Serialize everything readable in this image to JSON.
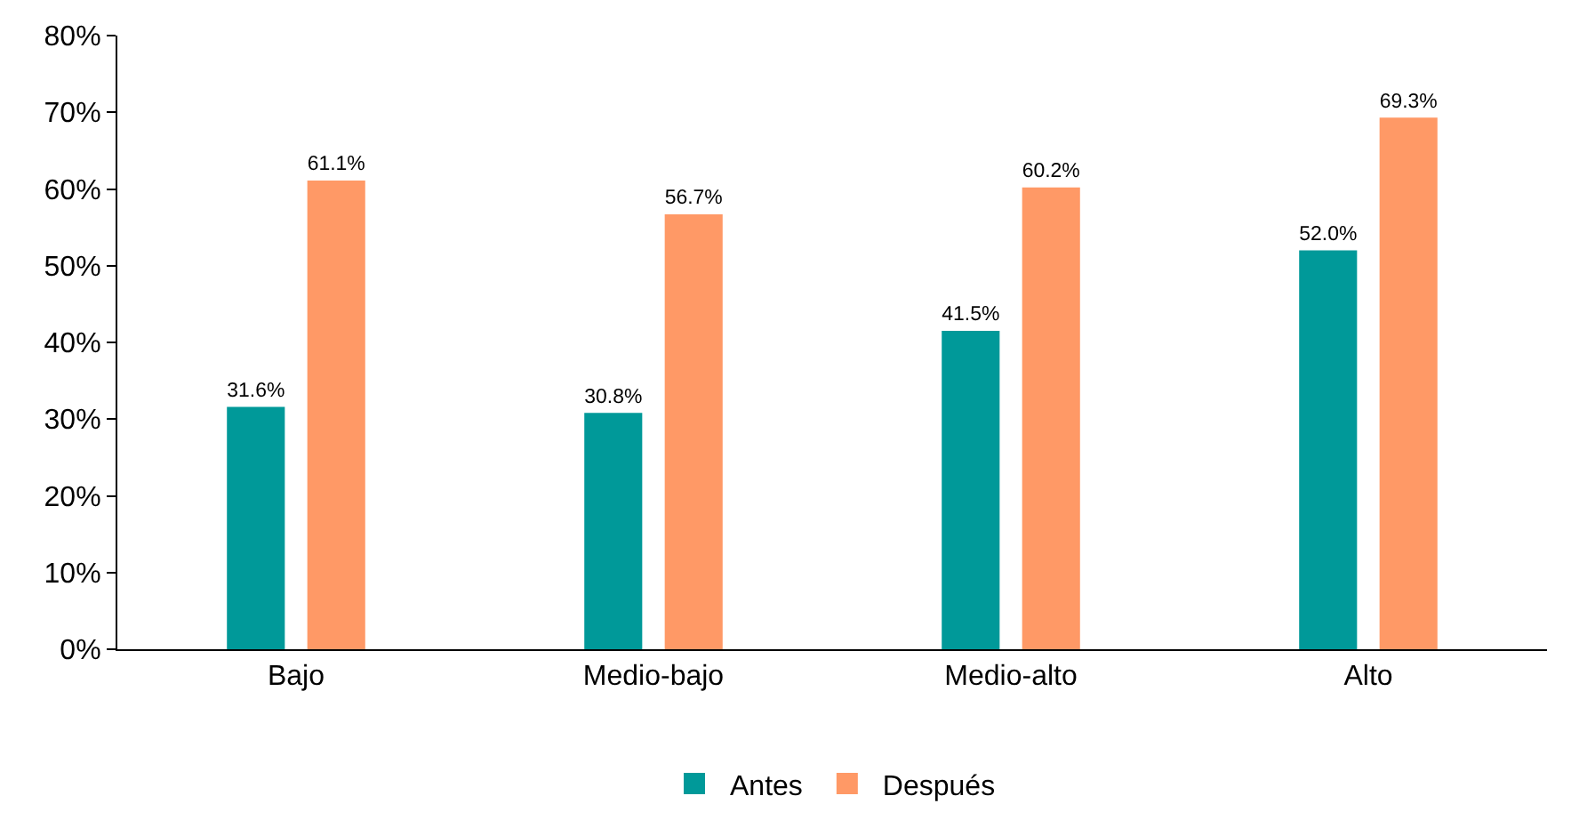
{
  "chart_data": {
    "type": "bar",
    "categories": [
      "Bajo",
      "Medio-bajo",
      "Medio-alto",
      "Alto"
    ],
    "series": [
      {
        "name": "Antes",
        "color": "#009999",
        "values": [
          31.6,
          30.8,
          41.5,
          52.0
        ],
        "value_labels": [
          "31.6%",
          "30.8%",
          "41.5%",
          "52.0%"
        ]
      },
      {
        "name": "Después",
        "color": "#ff9966",
        "values": [
          61.1,
          56.7,
          60.2,
          69.3
        ],
        "value_labels": [
          "61.1%",
          "56.7%",
          "60.2%",
          "69.3%"
        ]
      }
    ],
    "ylim": [
      0,
      80
    ],
    "yticks": [
      {
        "value": 0,
        "label": "0%"
      },
      {
        "value": 10,
        "label": "10%"
      },
      {
        "value": 20,
        "label": "20%"
      },
      {
        "value": 30,
        "label": "30%"
      },
      {
        "value": 40,
        "label": "40%"
      },
      {
        "value": 50,
        "label": "50%"
      },
      {
        "value": 60,
        "label": "60%"
      },
      {
        "value": 70,
        "label": "70%"
      },
      {
        "value": 80,
        "label": "80%"
      }
    ],
    "grid": false,
    "legend": "bottom"
  }
}
